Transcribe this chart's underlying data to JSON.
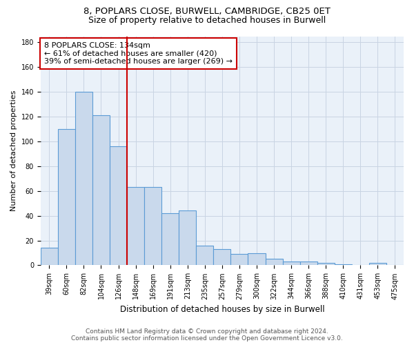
{
  "title_line1": "8, POPLARS CLOSE, BURWELL, CAMBRIDGE, CB25 0ET",
  "title_line2": "Size of property relative to detached houses in Burwell",
  "xlabel": "Distribution of detached houses by size in Burwell",
  "ylabel": "Number of detached properties",
  "categories": [
    "39sqm",
    "60sqm",
    "82sqm",
    "104sqm",
    "126sqm",
    "148sqm",
    "169sqm",
    "191sqm",
    "213sqm",
    "235sqm",
    "257sqm",
    "279sqm",
    "300sqm",
    "322sqm",
    "344sqm",
    "366sqm",
    "388sqm",
    "410sqm",
    "431sqm",
    "453sqm",
    "475sqm"
  ],
  "values": [
    14,
    110,
    140,
    121,
    96,
    63,
    63,
    42,
    44,
    16,
    13,
    9,
    10,
    5,
    3,
    3,
    2,
    1,
    0,
    2,
    0
  ],
  "bar_color": "#c9d9ec",
  "bar_edge_color": "#5b9bd5",
  "red_line_color": "#cc0000",
  "red_line_index": 4.5,
  "annotation_text": "8 POPLARS CLOSE: 134sqm\n← 61% of detached houses are smaller (420)\n39% of semi-detached houses are larger (269) →",
  "annotation_box_color": "#ffffff",
  "annotation_box_edge": "#cc0000",
  "ylim": [
    0,
    185
  ],
  "yticks": [
    0,
    20,
    40,
    60,
    80,
    100,
    120,
    140,
    160,
    180
  ],
  "grid_color": "#c8d4e3",
  "bg_color": "#eaf1f9",
  "footer_text": "Contains HM Land Registry data © Crown copyright and database right 2024.\nContains public sector information licensed under the Open Government Licence v3.0.",
  "title_fontsize": 9.5,
  "subtitle_fontsize": 9,
  "xlabel_fontsize": 8.5,
  "ylabel_fontsize": 8,
  "tick_fontsize": 7,
  "annotation_fontsize": 8,
  "footer_fontsize": 6.5
}
